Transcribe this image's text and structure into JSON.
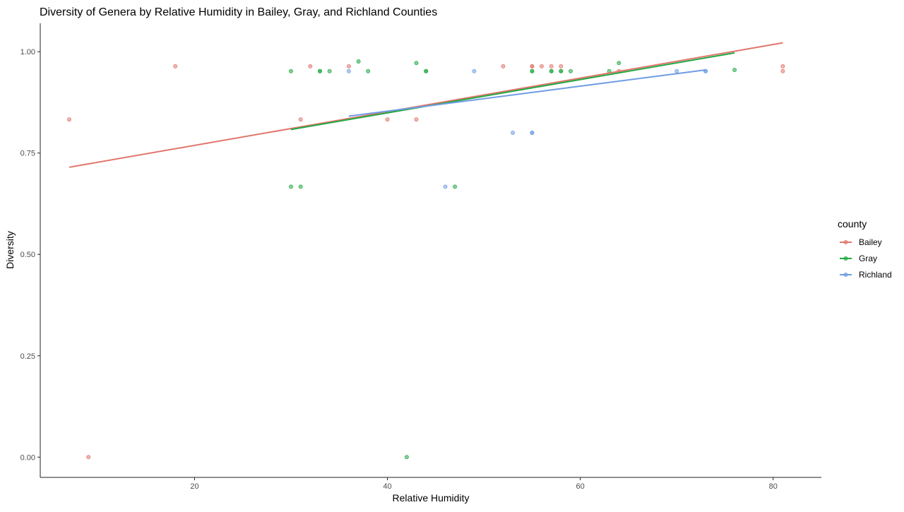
{
  "colors": {
    "Bailey": "#E0766C",
    "Gray": "#23A844",
    "Richland": "#6F9CE3",
    "axis": "#222222",
    "tick_label": "#4D4D4D",
    "text": "#000000"
  },
  "chart_data": {
    "type": "scatter",
    "title": "Diversity of Genera by Relative Humidity in Bailey, Gray, and Richland Counties",
    "xlabel": "Relative Humidity",
    "ylabel": "Diversity",
    "xlim": [
      4,
      85
    ],
    "ylim": [
      -0.05,
      1.07
    ],
    "x_ticks": [
      20,
      40,
      60,
      80
    ],
    "x_tick_labels": [
      "20",
      "40",
      "60",
      "80"
    ],
    "y_ticks": [
      0,
      0.25,
      0.5,
      0.75,
      1
    ],
    "y_tick_labels": [
      "0.00",
      "0.25",
      "0.50",
      "0.75",
      "1.00"
    ],
    "grid": false,
    "legend": {
      "title": "county",
      "position": "right",
      "entries": [
        "Bailey",
        "Gray",
        "Richland"
      ]
    },
    "series": [
      {
        "name": "Bailey",
        "points": [
          [
            7,
            0.833
          ],
          [
            9,
            0.0
          ],
          [
            18,
            0.964
          ],
          [
            31,
            0.833
          ],
          [
            32,
            0.964
          ],
          [
            36,
            0.964
          ],
          [
            40,
            0.833
          ],
          [
            43,
            0.833
          ],
          [
            52,
            0.964
          ],
          [
            55,
            0.964
          ],
          [
            55,
            0.964
          ],
          [
            56,
            0.964
          ],
          [
            57,
            0.964
          ],
          [
            58,
            0.964
          ],
          [
            64,
            0.952
          ],
          [
            81,
            0.964
          ],
          [
            81,
            0.952
          ]
        ],
        "trend": [
          [
            7,
            0.715
          ],
          [
            81,
            1.022
          ]
        ]
      },
      {
        "name": "Gray",
        "points": [
          [
            30,
            0.952
          ],
          [
            30,
            0.667
          ],
          [
            31,
            0.667
          ],
          [
            33,
            0.952
          ],
          [
            33,
            0.952
          ],
          [
            34,
            0.952
          ],
          [
            37,
            0.976
          ],
          [
            38,
            0.952
          ],
          [
            42,
            0.0
          ],
          [
            43,
            0.972
          ],
          [
            44,
            0.952
          ],
          [
            44,
            0.952
          ],
          [
            47,
            0.667
          ],
          [
            55,
            0.952
          ],
          [
            55,
            0.952
          ],
          [
            57,
            0.952
          ],
          [
            57,
            0.952
          ],
          [
            58,
            0.952
          ],
          [
            58,
            0.952
          ],
          [
            59,
            0.952
          ],
          [
            63,
            0.952
          ],
          [
            64,
            0.972
          ],
          [
            76,
            0.955
          ]
        ],
        "trend": [
          [
            30,
            0.808
          ],
          [
            76,
            0.997
          ]
        ]
      },
      {
        "name": "Richland",
        "points": [
          [
            36,
            0.952
          ],
          [
            46,
            0.667
          ],
          [
            49,
            0.952
          ],
          [
            53,
            0.8
          ],
          [
            55,
            0.8
          ],
          [
            55,
            0.8
          ],
          [
            70,
            0.952
          ],
          [
            73,
            0.952
          ],
          [
            73,
            0.952
          ]
        ],
        "trend": [
          [
            36,
            0.841
          ],
          [
            73,
            0.955
          ]
        ]
      }
    ]
  }
}
